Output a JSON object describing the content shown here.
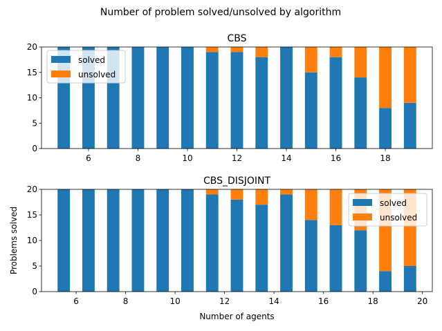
{
  "figure": {
    "suptitle": "Number of problem solved/unsolved by algorithm"
  },
  "colors": {
    "solved": "#1f77b4",
    "unsolved": "#ff7f0e"
  },
  "chart_data": [
    {
      "type": "bar",
      "stacked": true,
      "title": "CBS",
      "xlabel": "",
      "ylabel": "",
      "x": [
        5,
        6,
        7,
        8,
        9,
        10,
        11,
        12,
        13,
        14,
        15,
        16,
        17,
        18,
        19
      ],
      "series": [
        {
          "name": "solved",
          "values": [
            20,
            20,
            20,
            20,
            20,
            20,
            19,
            19,
            18,
            20,
            15,
            18,
            14,
            8,
            9
          ]
        },
        {
          "name": "unsolved",
          "values": [
            0,
            0,
            0,
            0,
            0,
            0,
            1,
            1,
            2,
            0,
            5,
            2,
            6,
            12,
            11
          ]
        }
      ],
      "xlim": [
        4.1,
        19.9
      ],
      "ylim": [
        0,
        20
      ],
      "xticks": [
        6,
        8,
        10,
        12,
        14,
        16,
        18
      ],
      "yticks": [
        0,
        5,
        10,
        15,
        20
      ],
      "legend": "upper-left"
    },
    {
      "type": "bar",
      "stacked": true,
      "title": "CBS_DISJOINT",
      "xlabel": "Number of agents",
      "ylabel": "Problems solved",
      "x": [
        5.5,
        6.5,
        7.5,
        8.5,
        9.5,
        10.5,
        11.5,
        12.5,
        13.5,
        14.5,
        15.5,
        16.5,
        17.5,
        18.5,
        19.5
      ],
      "series": [
        {
          "name": "solved",
          "values": [
            20,
            20,
            20,
            20,
            20,
            20,
            19,
            18,
            17,
            19,
            14,
            13,
            12,
            4,
            5
          ]
        },
        {
          "name": "unsolved",
          "values": [
            0,
            0,
            0,
            0,
            0,
            0,
            1,
            2,
            3,
            1,
            6,
            7,
            8,
            16,
            15
          ]
        }
      ],
      "xlim": [
        4.6,
        20.4
      ],
      "ylim": [
        0,
        20
      ],
      "xticks": [
        6,
        8,
        10,
        12,
        14,
        16,
        18,
        20
      ],
      "yticks": [
        0,
        5,
        10,
        15,
        20
      ],
      "legend": "upper-right"
    }
  ]
}
